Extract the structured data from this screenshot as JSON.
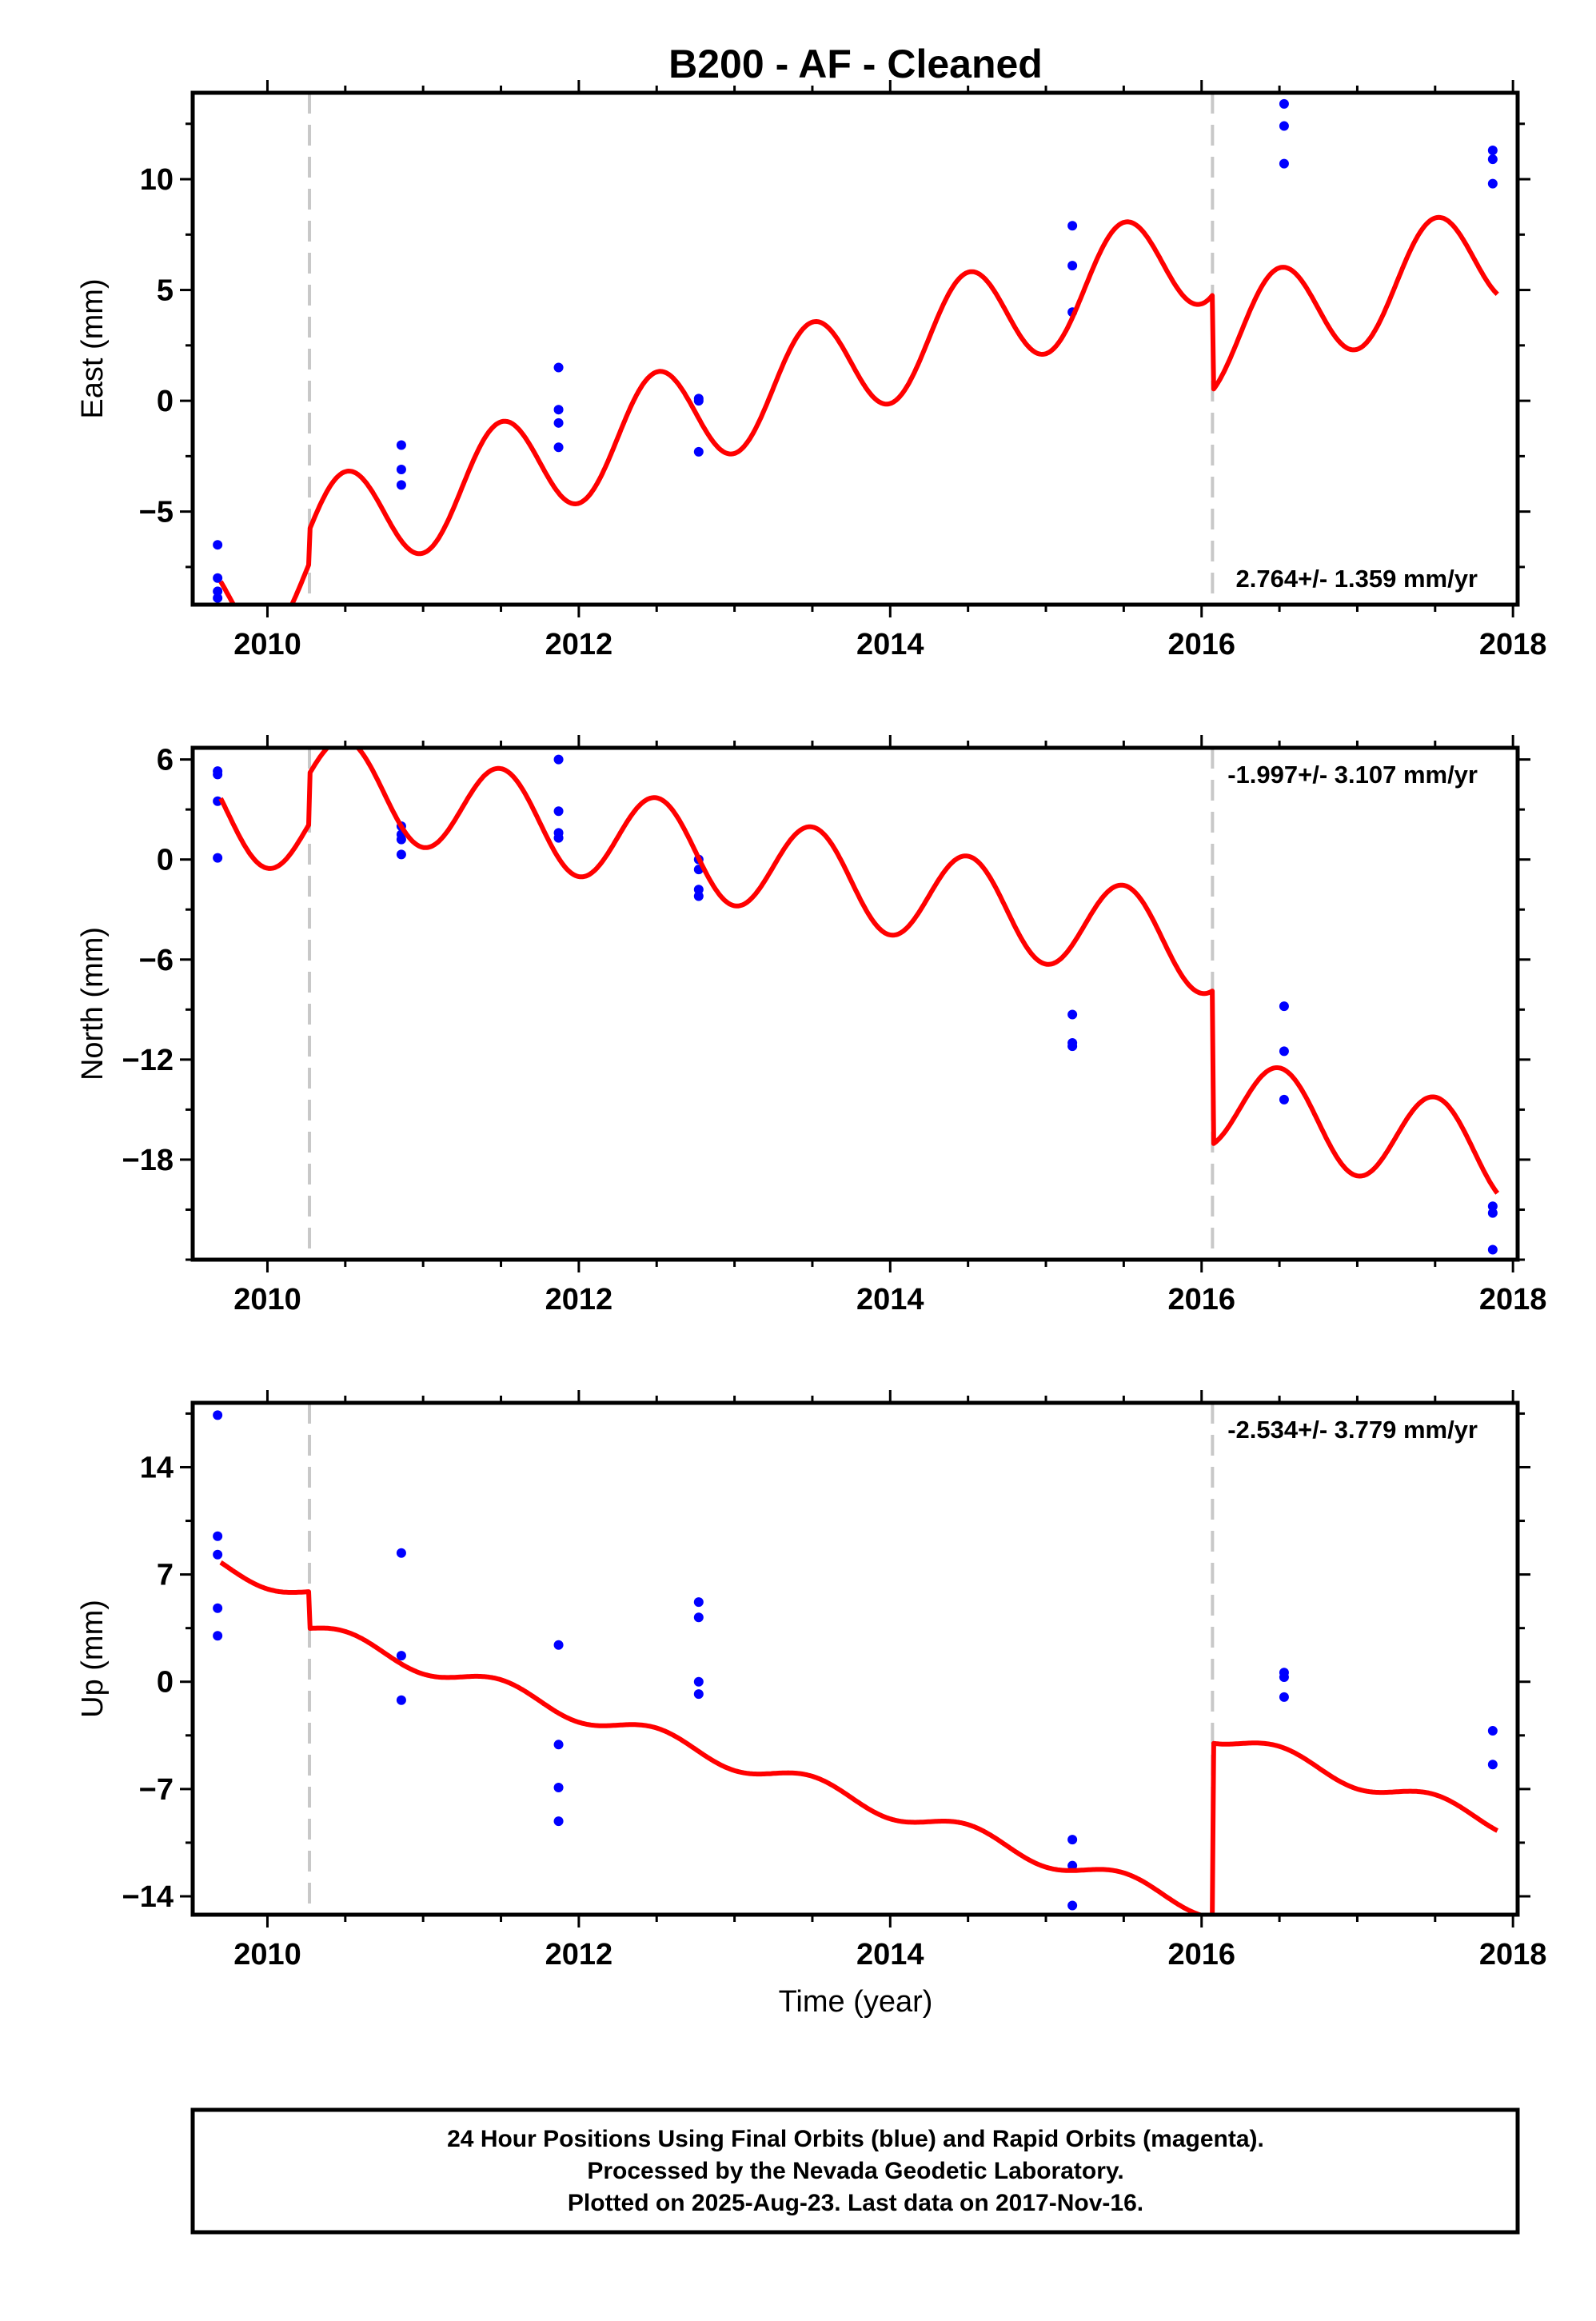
{
  "title": "B200  - AF - Cleaned",
  "chart_data": [
    {
      "name": "east",
      "type": "line",
      "ylabel": "East (mm)",
      "xlim": [
        2009.52,
        2018.03
      ],
      "ylim": [
        -9.2,
        13.9
      ],
      "yticks": [
        -5,
        0,
        5,
        10
      ],
      "xticks": [
        2010,
        2012,
        2014,
        2016,
        2018
      ],
      "rate_text": "2.764+/- 1.359 mm/yr",
      "rate_position": "bottom-right",
      "breaks": [
        2010.27,
        2016.07
      ],
      "model": {
        "base": -8.9,
        "rate": 2.25,
        "amp": 2.4,
        "phase_year": 2010.25,
        "offsets": [
          {
            "year": 2010.27,
            "step": 1.5
          },
          {
            "year": 2016.07,
            "step": -4.3
          }
        ]
      },
      "points": [
        {
          "x": 2009.68,
          "y": -6.5
        },
        {
          "x": 2009.68,
          "y": -8.0
        },
        {
          "x": 2009.68,
          "y": -8.6
        },
        {
          "x": 2009.68,
          "y": -8.9
        },
        {
          "x": 2010.86,
          "y": -2.0
        },
        {
          "x": 2010.86,
          "y": -3.1
        },
        {
          "x": 2010.86,
          "y": -3.8
        },
        {
          "x": 2011.87,
          "y": 1.5
        },
        {
          "x": 2011.87,
          "y": -0.4
        },
        {
          "x": 2011.87,
          "y": -1.0
        },
        {
          "x": 2011.87,
          "y": -2.1
        },
        {
          "x": 2012.77,
          "y": 0.1
        },
        {
          "x": 2012.77,
          "y": 0.0
        },
        {
          "x": 2012.77,
          "y": -2.3
        },
        {
          "x": 2015.17,
          "y": 7.9
        },
        {
          "x": 2015.17,
          "y": 6.1
        },
        {
          "x": 2015.17,
          "y": 4.0
        },
        {
          "x": 2016.53,
          "y": 13.4
        },
        {
          "x": 2016.53,
          "y": 12.4
        },
        {
          "x": 2016.53,
          "y": 10.7
        },
        {
          "x": 2017.87,
          "y": 11.3
        },
        {
          "x": 2017.87,
          "y": 10.9
        },
        {
          "x": 2017.87,
          "y": 9.8
        }
      ]
    },
    {
      "name": "north",
      "type": "line",
      "ylabel": "North (mm)",
      "xlim": [
        2009.52,
        2018.03
      ],
      "ylim": [
        -24,
        6.7
      ],
      "yticks": [
        -18,
        -12,
        -6,
        0,
        6
      ],
      "xticks": [
        2010,
        2012,
        2014,
        2016,
        2018
      ],
      "rate_text": "-1.997+/- 3.107 mm/yr",
      "rate_position": "top-right",
      "breaks": [
        2010.27,
        2016.07
      ],
      "model": {
        "base": 2.8,
        "rate": -1.75,
        "amp": 2.8,
        "phase_year": 2010.25,
        "offsets": [
          {
            "year": 2010.27,
            "step": 3.0
          },
          {
            "year": 2016.07,
            "step": -9.2
          }
        ]
      },
      "points": [
        {
          "x": 2009.68,
          "y": 5.3
        },
        {
          "x": 2009.68,
          "y": 5.1
        },
        {
          "x": 2009.68,
          "y": 3.5
        },
        {
          "x": 2009.68,
          "y": 0.1
        },
        {
          "x": 2010.86,
          "y": 2.0
        },
        {
          "x": 2010.86,
          "y": 1.5
        },
        {
          "x": 2010.86,
          "y": 1.2
        },
        {
          "x": 2010.86,
          "y": 0.3
        },
        {
          "x": 2011.87,
          "y": 6.0
        },
        {
          "x": 2011.87,
          "y": 2.9
        },
        {
          "x": 2011.87,
          "y": 1.6
        },
        {
          "x": 2011.87,
          "y": 1.3
        },
        {
          "x": 2012.77,
          "y": 0.0
        },
        {
          "x": 2012.77,
          "y": -0.6
        },
        {
          "x": 2012.77,
          "y": -1.8
        },
        {
          "x": 2012.77,
          "y": -2.2
        },
        {
          "x": 2015.17,
          "y": -9.3
        },
        {
          "x": 2015.17,
          "y": -11.0
        },
        {
          "x": 2015.17,
          "y": -11.2
        },
        {
          "x": 2016.53,
          "y": -8.8
        },
        {
          "x": 2016.53,
          "y": -11.5
        },
        {
          "x": 2016.53,
          "y": -14.4
        },
        {
          "x": 2017.87,
          "y": -20.8
        },
        {
          "x": 2017.87,
          "y": -21.2
        },
        {
          "x": 2017.87,
          "y": -23.4
        }
      ]
    },
    {
      "name": "up",
      "type": "line",
      "ylabel": "Up (mm)",
      "xlim": [
        2009.52,
        2018.03
      ],
      "ylim": [
        -15.2,
        18.2
      ],
      "yticks": [
        -14,
        -7,
        0,
        7,
        14
      ],
      "xticks": [
        2010,
        2012,
        2014,
        2016,
        2018
      ],
      "xlabel": "Time (year)",
      "rate_text": "-2.534+/- 3.779 mm/yr",
      "rate_position": "top-right",
      "breaks": [
        2010.27,
        2016.07
      ],
      "model": {
        "base": 7.6,
        "rate": -3.15,
        "amp": 0.6,
        "phase_year": 2010.25,
        "offsets": [
          {
            "year": 2010.27,
            "step": -2.4
          },
          {
            "year": 2016.07,
            "step": 11.4
          }
        ]
      },
      "points": [
        {
          "x": 2009.68,
          "y": 17.4
        },
        {
          "x": 2009.68,
          "y": 9.5
        },
        {
          "x": 2009.68,
          "y": 8.3
        },
        {
          "x": 2009.68,
          "y": 4.8
        },
        {
          "x": 2009.68,
          "y": 3.0
        },
        {
          "x": 2010.86,
          "y": 8.4
        },
        {
          "x": 2010.86,
          "y": 1.7
        },
        {
          "x": 2010.86,
          "y": -1.2
        },
        {
          "x": 2011.87,
          "y": 2.4
        },
        {
          "x": 2011.87,
          "y": -4.1
        },
        {
          "x": 2011.87,
          "y": -6.9
        },
        {
          "x": 2011.87,
          "y": -9.1
        },
        {
          "x": 2012.77,
          "y": 5.2
        },
        {
          "x": 2012.77,
          "y": 4.2
        },
        {
          "x": 2012.77,
          "y": 0.0
        },
        {
          "x": 2012.77,
          "y": -0.8
        },
        {
          "x": 2015.17,
          "y": -10.3
        },
        {
          "x": 2015.17,
          "y": -12.0
        },
        {
          "x": 2015.17,
          "y": -14.6
        },
        {
          "x": 2016.53,
          "y": 0.6
        },
        {
          "x": 2016.53,
          "y": 0.3
        },
        {
          "x": 2016.53,
          "y": -1.0
        },
        {
          "x": 2017.87,
          "y": -3.2
        },
        {
          "x": 2017.87,
          "y": -5.4
        }
      ]
    }
  ],
  "footer": {
    "line1": "24 Hour Positions Using Final Orbits (blue) and Rapid Orbits (magenta).",
    "line2": "Processed by the Nevada Geodetic Laboratory.",
    "line3": "Plotted on 2025-Aug-23. Last data on 2017-Nov-16."
  },
  "colors": {
    "model": "#ff0000",
    "points": "#0000ff",
    "breaks": "#c8c8c8",
    "frame": "#000000"
  }
}
